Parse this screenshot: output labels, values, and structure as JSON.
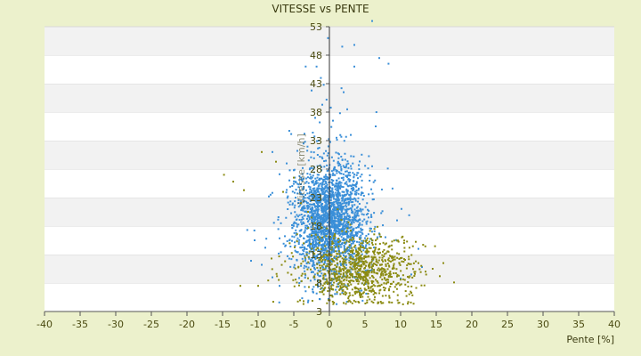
{
  "chart_data": {
    "type": "scatter",
    "title": "VITESSE vs PENTE",
    "xlabel": "Pente [%]",
    "ylabel": "Vitesse [km/h]",
    "xlim": [
      -40,
      40
    ],
    "ylim": [
      3,
      53
    ],
    "x_ticks": [
      "-40",
      "-35",
      "-30",
      "-25",
      "-20",
      "-15",
      "-10",
      "-5",
      "0",
      "5",
      "10",
      "15",
      "20",
      "25",
      "30",
      "35",
      "40"
    ],
    "y_ticks": [
      "3",
      "8",
      "13",
      "18",
      "23",
      "28",
      "33",
      "38",
      "43",
      "48",
      "53"
    ],
    "grid": "alternating horizontal bands",
    "series": [
      {
        "color": "#3a8fd8",
        "points": [
          [
            6,
            54
          ],
          [
            -0.2,
            51
          ],
          [
            1.8,
            49.5
          ],
          [
            3.5,
            49.8
          ],
          [
            7,
            47.5
          ],
          [
            -1.8,
            46
          ],
          [
            3.5,
            46
          ],
          [
            8.3,
            46.5
          ],
          [
            -1.2,
            44
          ],
          [
            -0.8,
            42.8
          ],
          [
            1.7,
            42.2
          ],
          [
            -2.5,
            41.8
          ],
          [
            2,
            41.5
          ],
          [
            -0.4,
            40.2
          ],
          [
            -1,
            39.3
          ],
          [
            0.2,
            38.8
          ],
          [
            2.5,
            38.5
          ],
          [
            6.6,
            38
          ],
          [
            -2,
            37
          ],
          [
            0.5,
            36.5
          ],
          [
            6.5,
            35.5
          ],
          [
            -3.5,
            34.2
          ],
          [
            3,
            34
          ],
          [
            -1.5,
            33
          ],
          [
            1,
            33.5
          ],
          [
            -4.5,
            31.2
          ],
          [
            -8,
            31
          ],
          [
            -6,
            29
          ],
          [
            -5,
            27.8
          ],
          [
            6,
            28.5
          ],
          [
            8.2,
            28.1
          ],
          [
            -7,
            27.1
          ],
          [
            -4,
            26.5
          ],
          [
            -8.5,
            23.2
          ],
          [
            9.5,
            19
          ],
          [
            11.2,
            19.9
          ],
          [
            -10.5,
            15.5
          ],
          [
            -9,
            14.2
          ],
          [
            12.5,
            14
          ],
          [
            -11,
            11.9
          ],
          [
            -9.5,
            11.2
          ],
          [
            13,
            10.8
          ],
          [
            -8,
            9
          ],
          [
            -7,
            7.5
          ],
          [
            10,
            8.8
          ],
          [
            11.5,
            9.5
          ]
        ],
        "cluster": {
          "center": [
            0,
            19
          ],
          "spread": [
            2.6,
            5.2
          ],
          "count": 2200
        }
      },
      {
        "color": "#8b8b12",
        "points": [
          [
            17.5,
            8.1
          ],
          [
            14.5,
            10.5
          ],
          [
            15.5,
            9.2
          ],
          [
            -12.5,
            7.5
          ],
          [
            -10,
            7.5
          ],
          [
            -14.8,
            27
          ],
          [
            -13.5,
            25.8
          ],
          [
            -12,
            24.3
          ],
          [
            -9.5,
            31
          ],
          [
            -7.5,
            29.3
          ],
          [
            -5,
            26.5
          ],
          [
            -6.5,
            24
          ],
          [
            -4,
            22
          ],
          [
            -3,
            20.5
          ],
          [
            -2.5,
            19.5
          ],
          [
            -2,
            18.5
          ],
          [
            -1,
            16
          ],
          [
            -0.5,
            13
          ],
          [
            0.5,
            12
          ],
          [
            1,
            10.8
          ],
          [
            2,
            10.2
          ],
          [
            3,
            9.6
          ],
          [
            4,
            9
          ],
          [
            5,
            8.5
          ],
          [
            6,
            8
          ],
          [
            7,
            7.5
          ],
          [
            8,
            7.9
          ],
          [
            9,
            8.2
          ],
          [
            10,
            8.6
          ],
          [
            11,
            9.1
          ],
          [
            12,
            9.6
          ],
          [
            13.5,
            10
          ],
          [
            16,
            11.5
          ],
          [
            12.5,
            11.5
          ],
          [
            10.5,
            12.2
          ],
          [
            8.5,
            12.8
          ],
          [
            7.5,
            13.5
          ],
          [
            6.5,
            14.2
          ]
        ],
        "cluster": {
          "center": [
            4,
            10
          ],
          "spread": [
            4,
            3.2
          ],
          "count": 900
        }
      }
    ]
  }
}
